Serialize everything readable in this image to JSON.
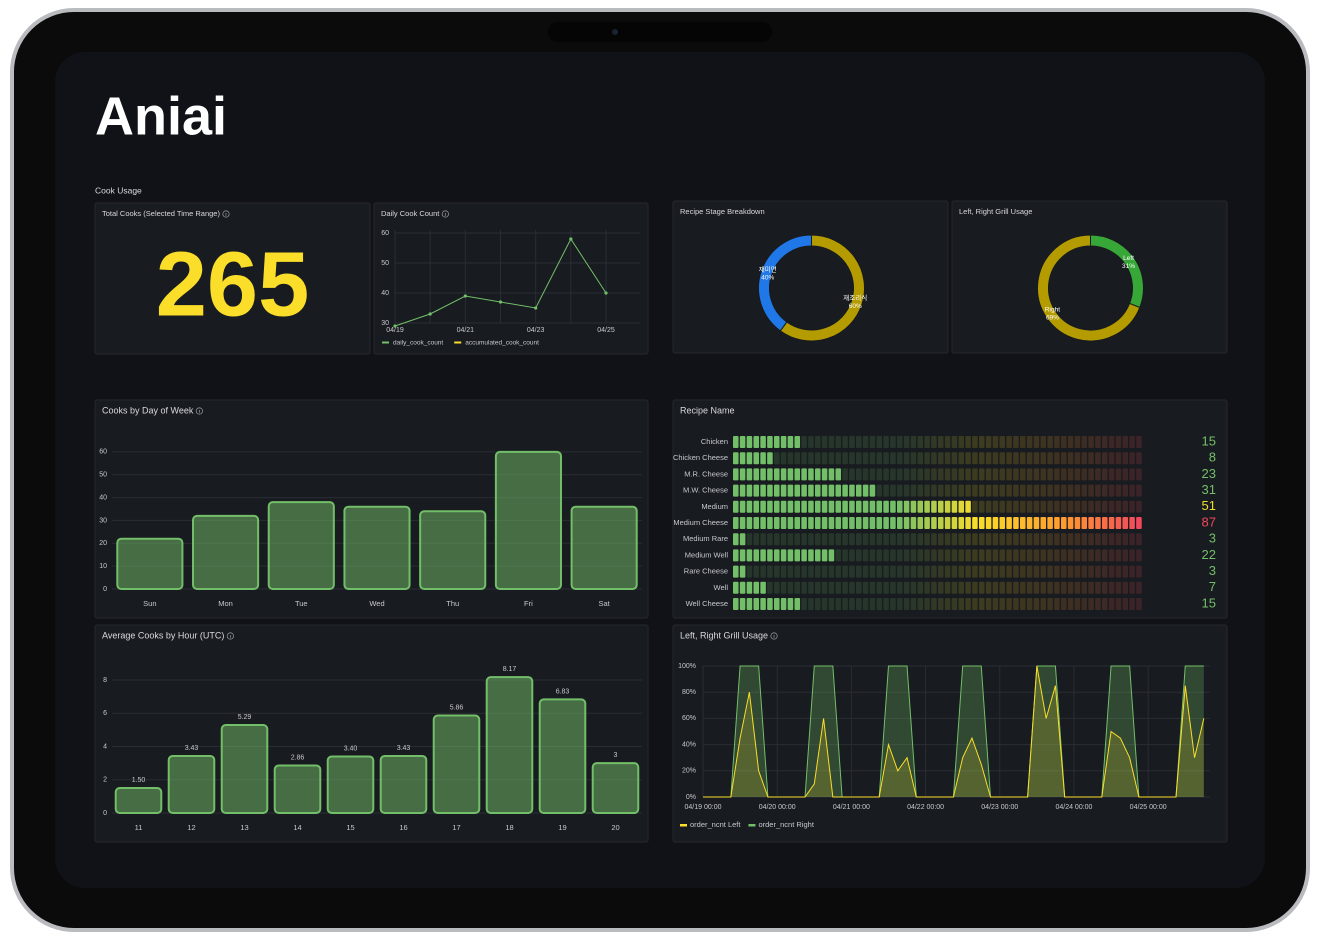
{
  "logo": "Aniai",
  "section_title": "Cook Usage",
  "chart_data": [
    {
      "type": "stat",
      "title": "Total Cooks (Selected Time Range)",
      "value": 265,
      "color": "#fade2a"
    },
    {
      "type": "line",
      "title": "Daily Cook Count",
      "categories": [
        "04/19",
        null,
        "04/21",
        null,
        "04/23",
        null,
        "04/25"
      ],
      "series": [
        {
          "name": "daily_cook_count",
          "color": "#73bf69",
          "values": [
            29,
            33,
            39,
            37,
            35,
            58,
            40
          ]
        },
        {
          "name": "accumulated_cook_count",
          "color": "#fade2a",
          "values": [
            null,
            null,
            null,
            null,
            null,
            null,
            null
          ]
        }
      ],
      "ylim": [
        30,
        61
      ],
      "yticks": [
        30,
        40,
        50,
        60
      ],
      "grid": true
    },
    {
      "type": "donut",
      "title": "Recipe Stage Breakdown",
      "labels": [
        "재조리식",
        "재미면"
      ],
      "values": [
        60,
        40
      ],
      "value_labels": [
        "60%",
        "40%"
      ],
      "colors": [
        "#b39b00",
        "#1f77e8"
      ]
    },
    {
      "type": "donut",
      "title": "Left, Right Grill Usage",
      "labels": [
        "Left",
        "Right"
      ],
      "values": [
        31,
        69
      ],
      "value_labels": [
        "31%",
        "69%"
      ],
      "colors": [
        "#37a837",
        "#b39b00"
      ]
    },
    {
      "type": "bar",
      "title": "Cooks by Day of Week",
      "categories": [
        "Sun",
        "Mon",
        "Tue",
        "Wed",
        "Thu",
        "Fri",
        "Sat"
      ],
      "values": [
        22,
        32,
        38,
        36,
        34,
        60,
        36
      ],
      "color": "#73bf69",
      "ylim": [
        0,
        63
      ],
      "yticks": [
        0,
        10,
        20,
        30,
        40,
        50,
        60
      ],
      "grid": true
    },
    {
      "type": "bargauge",
      "title": "Recipe Name",
      "categories": [
        "Chicken",
        "Chicken Cheese",
        "M.R. Cheese",
        "M.W. Cheese",
        "Medium",
        "Medium Cheese",
        "Medium Rare",
        "Medium Well",
        "Rare Cheese",
        "Well",
        "Well Cheese"
      ],
      "values": [
        15,
        8,
        23,
        31,
        51,
        87,
        3,
        22,
        3,
        7,
        15
      ]
    },
    {
      "type": "bar",
      "title": "Average Cooks by Hour (UTC)",
      "categories": [
        "11",
        "12",
        "13",
        "14",
        "15",
        "16",
        "17",
        "18",
        "19",
        "20"
      ],
      "values": [
        1.5,
        3.43,
        5.29,
        2.86,
        3.4,
        3.43,
        5.86,
        8.17,
        6.83,
        3
      ],
      "value_labels": [
        "1.50",
        "3.43",
        "5.29",
        "2.86",
        "3.40",
        "3.43",
        "5.86",
        "8.17",
        "6.83",
        "3"
      ],
      "color": "#73bf69",
      "ylim": [
        0,
        8.6
      ],
      "yticks": [
        0,
        2,
        4,
        6,
        8
      ],
      "grid": true
    },
    {
      "type": "timeseries",
      "title": "Left, Right Grill Usage",
      "x": [
        "04/19 00:00",
        "04/19 03:00",
        "04/19 06:00",
        "04/19 09:00",
        "04/19 12:00",
        "04/19 15:00",
        "04/19 18:00",
        "04/19 21:00",
        "04/20 00:00",
        "04/20 03:00",
        "04/20 06:00",
        "04/20 09:00",
        "04/20 12:00",
        "04/20 15:00",
        "04/20 18:00",
        "04/20 21:00",
        "04/21 00:00",
        "04/21 03:00",
        "04/21 06:00",
        "04/21 09:00",
        "04/21 12:00",
        "04/21 15:00",
        "04/21 18:00",
        "04/21 21:00",
        "04/22 00:00",
        "04/22 03:00",
        "04/22 06:00",
        "04/22 09:00",
        "04/22 12:00",
        "04/22 15:00",
        "04/22 18:00",
        "04/22 21:00",
        "04/23 00:00",
        "04/23 03:00",
        "04/23 06:00",
        "04/23 09:00",
        "04/23 12:00",
        "04/23 15:00",
        "04/23 18:00",
        "04/23 21:00",
        "04/24 00:00",
        "04/24 03:00",
        "04/24 06:00",
        "04/24 09:00",
        "04/24 12:00",
        "04/24 15:00",
        "04/24 18:00",
        "04/24 21:00",
        "04/25 00:00",
        "04/25 03:00",
        "04/25 06:00",
        "04/25 09:00",
        "04/25 12:00",
        "04/25 15:00",
        "04/25 18:00"
      ],
      "series": [
        {
          "name": "order_ncnt Left",
          "color": "#fade2a",
          "values": [
            0,
            0,
            0,
            0,
            45,
            80,
            20,
            0,
            0,
            0,
            0,
            0,
            10,
            60,
            0,
            0,
            0,
            0,
            0,
            0,
            40,
            20,
            30,
            0,
            0,
            0,
            0,
            0,
            30,
            45,
            25,
            0,
            0,
            0,
            0,
            0,
            100,
            60,
            85,
            0,
            0,
            0,
            0,
            0,
            50,
            45,
            30,
            0,
            0,
            0,
            0,
            0,
            85,
            30,
            60
          ]
        },
        {
          "name": "order_ncnt Right",
          "color": "#73bf69",
          "values": [
            0,
            0,
            0,
            0,
            100,
            100,
            100,
            0,
            0,
            0,
            0,
            0,
            100,
            100,
            100,
            0,
            0,
            0,
            0,
            0,
            100,
            100,
            100,
            0,
            0,
            0,
            0,
            0,
            100,
            100,
            100,
            0,
            0,
            0,
            0,
            0,
            100,
            100,
            100,
            0,
            0,
            0,
            0,
            0,
            100,
            100,
            100,
            0,
            0,
            0,
            0,
            0,
            100,
            100,
            100
          ]
        }
      ],
      "xlim": [
        "04/19 00:00",
        "04/25 20:00"
      ],
      "xticks": [
        "04/19 00:00",
        "04/20 00:00",
        "04/21 00:00",
        "04/22 00:00",
        "04/23 00:00",
        "04/24 00:00",
        "04/25 00:00"
      ],
      "ylim": [
        0,
        100
      ],
      "yticks": [
        {
          "value": 0,
          "label": "0%"
        },
        {
          "value": 20,
          "label": "20%"
        },
        {
          "value": 40,
          "label": "40%"
        },
        {
          "value": 60,
          "label": "60%"
        },
        {
          "value": 80,
          "label": "80%"
        },
        {
          "value": 100,
          "label": "100%"
        }
      ],
      "grid": true
    }
  ]
}
